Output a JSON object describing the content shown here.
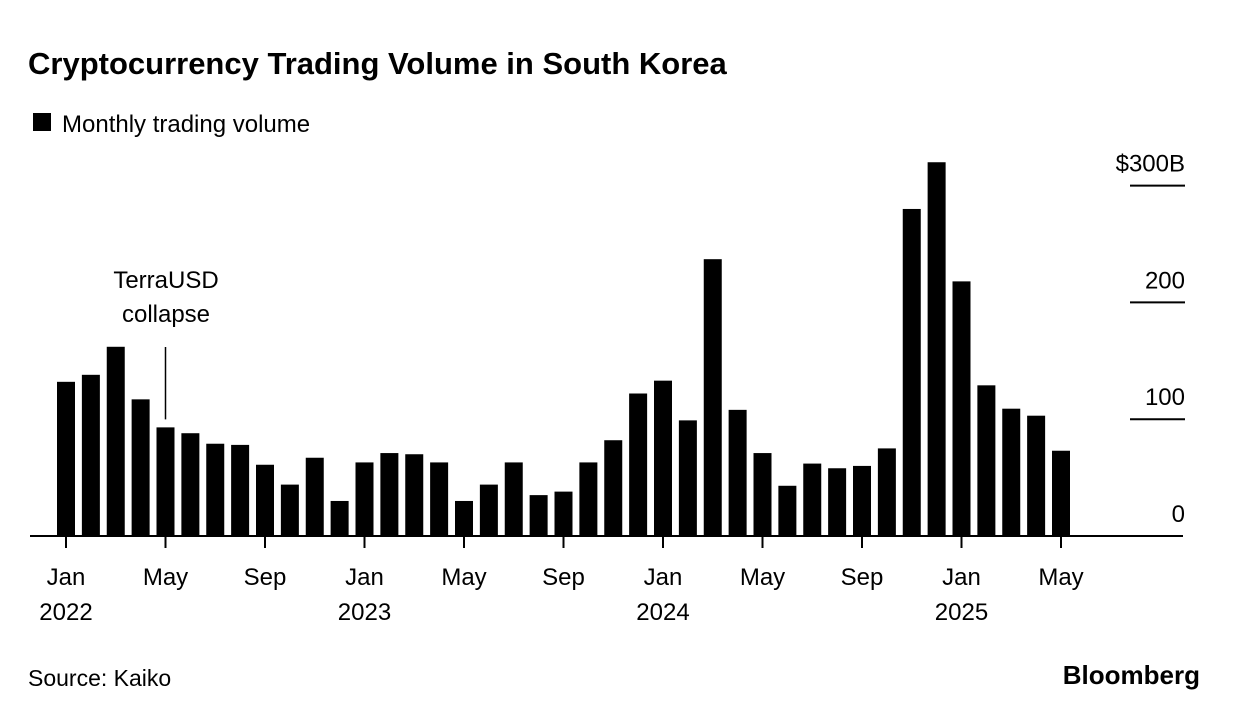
{
  "chart_data": {
    "type": "bar",
    "title": "Cryptocurrency Trading Volume in South Korea",
    "legend": [
      {
        "label": "Monthly trading volume",
        "color": "#000000"
      }
    ],
    "legend_placement": "top-left",
    "source": "Source: Kaiko",
    "brand": "Bloomberg",
    "annotation": {
      "lines": [
        "TerraUSD",
        "collapse"
      ],
      "index": 4
    },
    "ylim": [
      0,
      300
    ],
    "yticks": [
      {
        "v": 0,
        "label": "0"
      },
      {
        "v": 100,
        "label": "100"
      },
      {
        "v": 200,
        "label": "200"
      },
      {
        "v": 300,
        "label": "$300B"
      }
    ],
    "xticks": [
      {
        "i": 0,
        "m": "Jan",
        "y": "2022"
      },
      {
        "i": 4,
        "m": "May",
        "y": ""
      },
      {
        "i": 8,
        "m": "Sep",
        "y": ""
      },
      {
        "i": 12,
        "m": "Jan",
        "y": "2023"
      },
      {
        "i": 16,
        "m": "May",
        "y": ""
      },
      {
        "i": 20,
        "m": "Sep",
        "y": ""
      },
      {
        "i": 24,
        "m": "Jan",
        "y": "2024"
      },
      {
        "i": 28,
        "m": "May",
        "y": ""
      },
      {
        "i": 32,
        "m": "Sep",
        "y": ""
      },
      {
        "i": 36,
        "m": "Jan",
        "y": "2025"
      },
      {
        "i": 40,
        "m": "May",
        "y": ""
      }
    ],
    "categories": [
      "2022-01",
      "2022-02",
      "2022-03",
      "2022-04",
      "2022-05",
      "2022-06",
      "2022-07",
      "2022-08",
      "2022-09",
      "2022-10",
      "2022-11",
      "2022-12",
      "2023-01",
      "2023-02",
      "2023-03",
      "2023-04",
      "2023-05",
      "2023-06",
      "2023-07",
      "2023-08",
      "2023-09",
      "2023-10",
      "2023-11",
      "2023-12",
      "2024-01",
      "2024-02",
      "2024-03",
      "2024-04",
      "2024-05",
      "2024-06",
      "2024-07",
      "2024-08",
      "2024-09",
      "2024-10",
      "2024-11",
      "2024-12",
      "2025-01",
      "2025-02",
      "2025-03",
      "2025-04",
      "2025-05"
    ],
    "values": [
      132,
      138,
      162,
      117,
      93,
      88,
      79,
      78,
      61,
      44,
      67,
      30,
      63,
      71,
      70,
      63,
      30,
      44,
      63,
      35,
      38,
      63,
      82,
      122,
      133,
      99,
      237,
      108,
      71,
      43,
      62,
      58,
      60,
      75,
      280,
      320,
      218,
      129,
      109,
      103,
      73
    ],
    "color": "#000000"
  }
}
